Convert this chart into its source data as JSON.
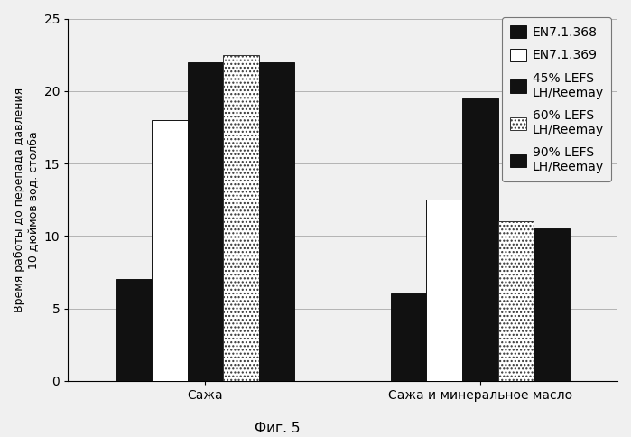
{
  "groups": [
    "Сажа",
    "Сажа и минеральное масло"
  ],
  "series": [
    {
      "label": "EN7.1.368",
      "color": "#111111",
      "hatch": "",
      "edgecolor": "#111111",
      "values": [
        7.0,
        6.0
      ]
    },
    {
      "label": "EN7.1.369",
      "color": "#ffffff",
      "hatch": "",
      "edgecolor": "#111111",
      "values": [
        18.0,
        12.5
      ]
    },
    {
      "label": "45% LEFS\nLH/Reemay",
      "color": "#111111",
      "hatch": "",
      "edgecolor": "#111111",
      "values": [
        22.0,
        19.5
      ]
    },
    {
      "label": "60% LEFS\nLH/Reemay",
      "color": "#ffffff",
      "hatch": "....",
      "edgecolor": "#333333",
      "values": [
        22.5,
        11.0
      ]
    },
    {
      "label": "90% LEFS\nLH/Reemay",
      "color": "#111111",
      "hatch": "",
      "edgecolor": "#111111",
      "values": [
        22.0,
        10.5
      ]
    }
  ],
  "ylabel": "Время работы до перепада давления\n10 дюймов вод. столба",
  "caption": "Фиг. 5",
  "ylim": [
    0,
    25
  ],
  "yticks": [
    0,
    5,
    10,
    15,
    20,
    25
  ],
  "group_width": 0.65,
  "background_color": "#f0f0f0",
  "figsize": [
    6.99,
    4.84
  ],
  "dpi": 100,
  "legend_fontsize": 10,
  "axis_fontsize": 10
}
